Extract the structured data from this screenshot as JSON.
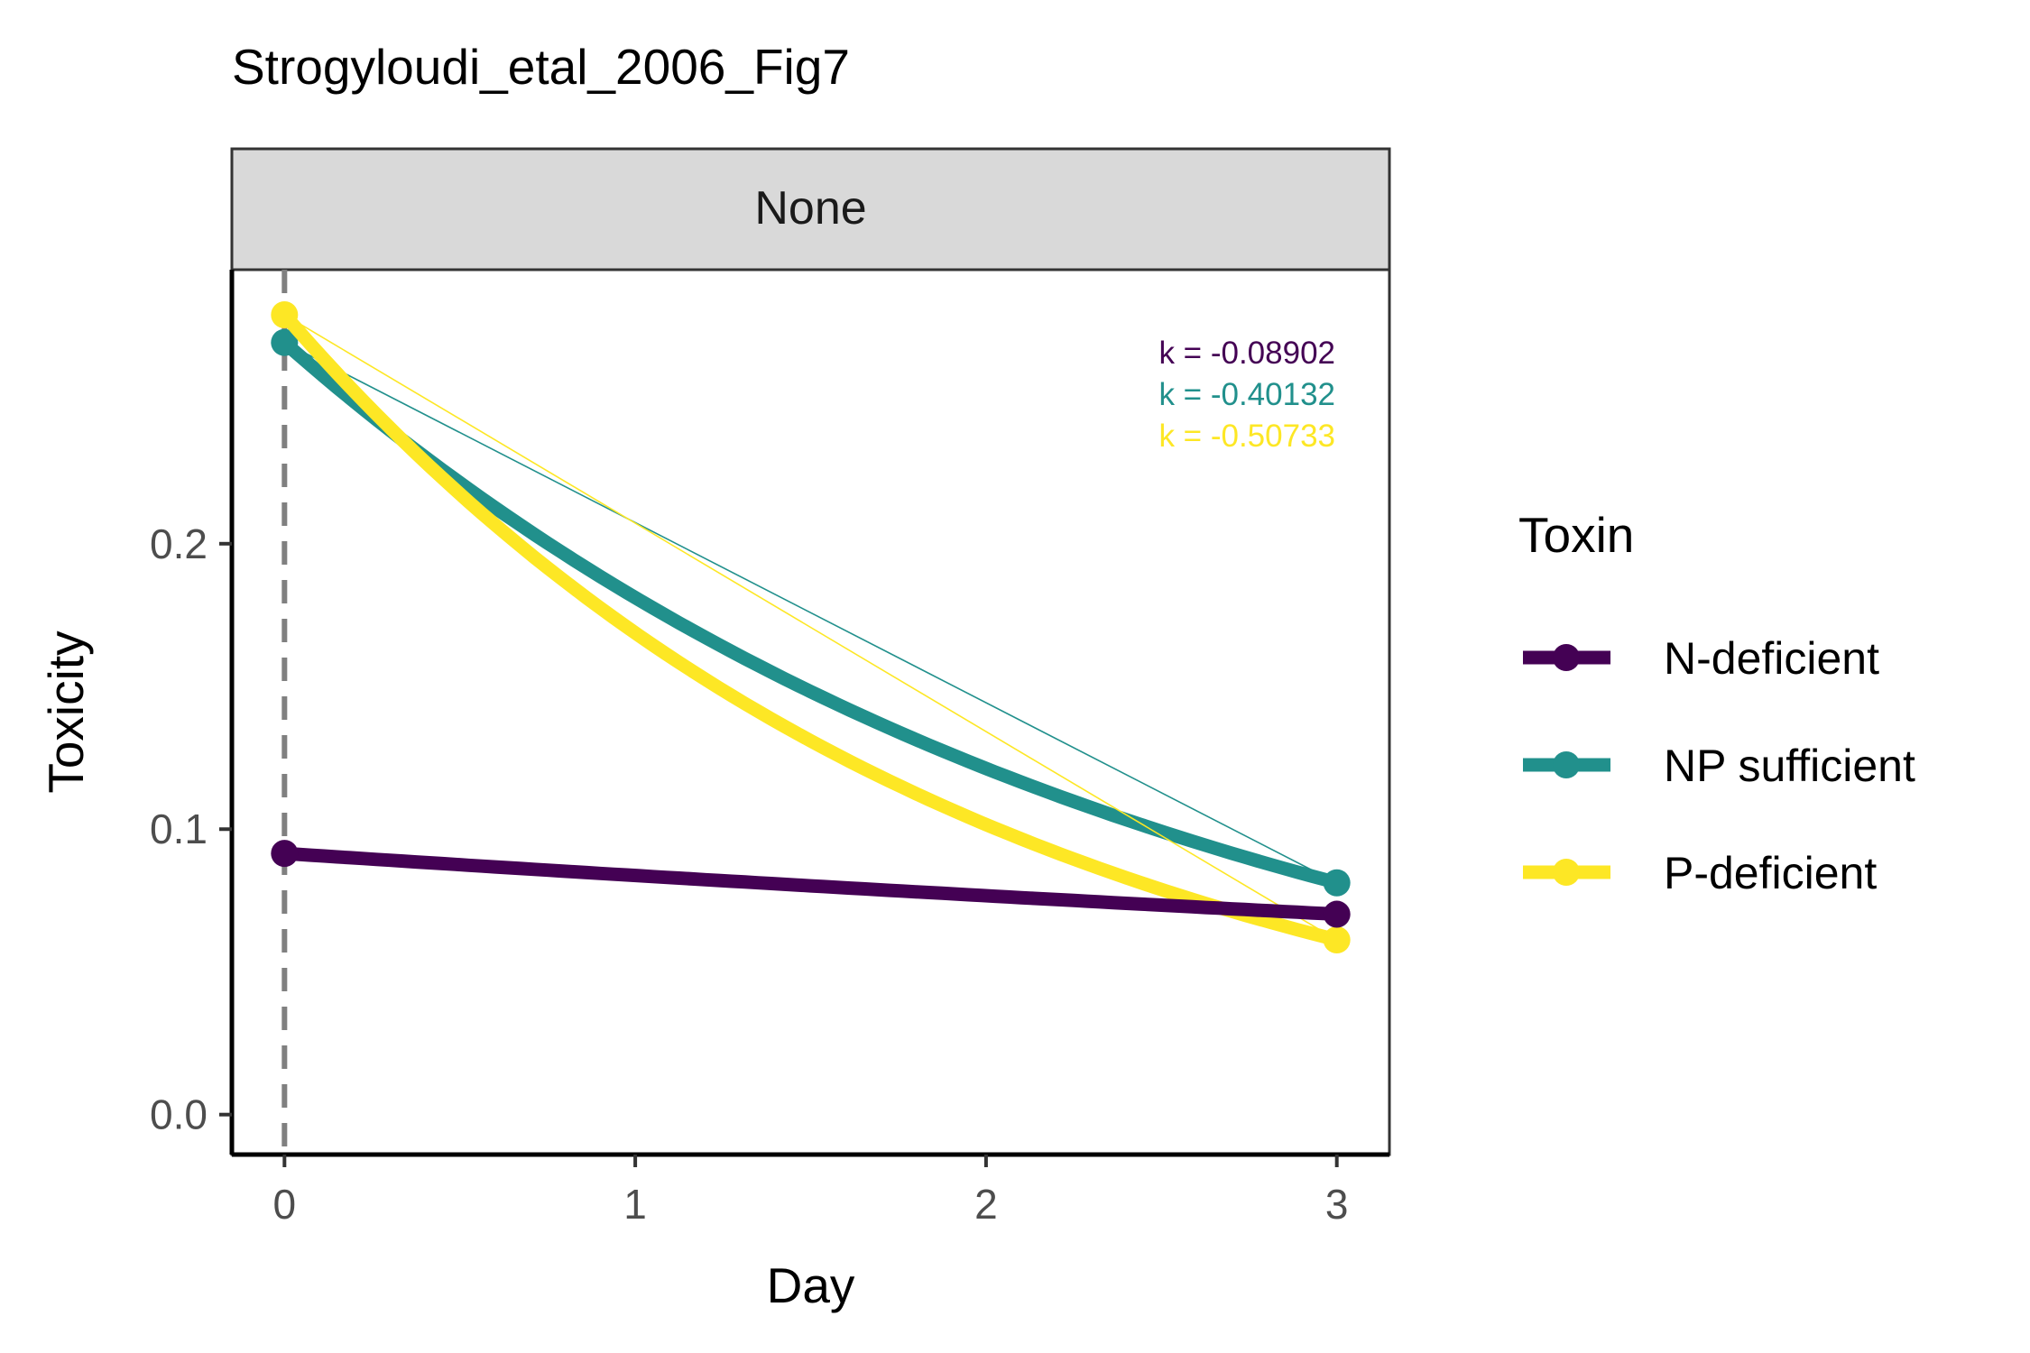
{
  "chart_data": {
    "type": "line",
    "title": "Strogyloudi_etal_2006_Fig7",
    "facet_label": "None",
    "xlabel": "Day",
    "ylabel": "Toxicity",
    "xlim": [
      -0.15,
      3.15
    ],
    "ylim": [
      -0.014,
      0.296
    ],
    "x_ticks": [
      0,
      1,
      2,
      3
    ],
    "x_tick_labels": [
      "0",
      "1",
      "2",
      "3"
    ],
    "y_ticks": [
      0.0,
      0.1,
      0.2
    ],
    "y_tick_labels": [
      "0.0",
      "0.1",
      "0.2"
    ],
    "reference_line_x": 0,
    "grid": false,
    "legend_title": "Toxin",
    "legend_position": "right",
    "series": [
      {
        "name": "N-deficient",
        "color": "#440154",
        "x": [
          0,
          3
        ],
        "y": [
          0.0915,
          0.0702
        ],
        "k": "k = -0.08902"
      },
      {
        "name": "NP sufficient",
        "color": "#21908C",
        "x": [
          0,
          3
        ],
        "y": [
          0.2705,
          0.0812
        ],
        "k": "k = -0.40132"
      },
      {
        "name": "P-deficient",
        "color": "#FDE725",
        "x": [
          0,
          3
        ],
        "y": [
          0.2802,
          0.0612
        ],
        "k": "k = -0.50733"
      }
    ]
  }
}
